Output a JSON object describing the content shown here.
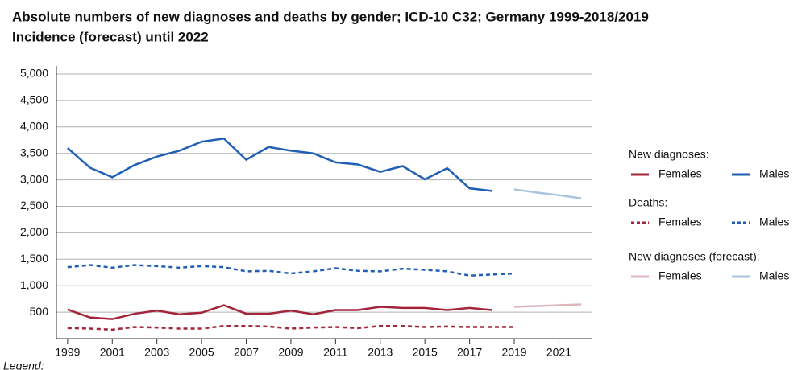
{
  "chart_data": {
    "type": "line",
    "title": "Absolute numbers of new diagnoses and deaths by gender; ICD-10 C32; Germany 1999-2018/2019",
    "subtitle": "Incidence (forecast) until 2022",
    "footer": "Legend:",
    "xlim": [
      1998.5,
      2022.5
    ],
    "xticks": [
      1999,
      2001,
      2003,
      2005,
      2007,
      2009,
      2011,
      2013,
      2015,
      2017,
      2019,
      2021
    ],
    "ylim": [
      0,
      5000
    ],
    "yticks": [
      {
        "value": 500,
        "label": "500"
      },
      {
        "value": 1000,
        "label": "1,000"
      },
      {
        "value": 1500,
        "label": "1,500"
      },
      {
        "value": 2000,
        "label": "2,000"
      },
      {
        "value": 2500,
        "label": "2,500"
      },
      {
        "value": 3000,
        "label": "3,000"
      },
      {
        "value": 3500,
        "label": "3,500"
      },
      {
        "value": 4000,
        "label": "4,000"
      },
      {
        "value": 4500,
        "label": "4,500"
      },
      {
        "value": 5000,
        "label": "5,000"
      }
    ],
    "grid": true,
    "groups": [
      {
        "title": "New diagnoses:",
        "line_style": "solid",
        "series": [
          {
            "name": "Females",
            "color": "#a3243b",
            "x": [
              1999,
              2000,
              2001,
              2002,
              2003,
              2004,
              2005,
              2006,
              2007,
              2008,
              2009,
              2010,
              2011,
              2012,
              2013,
              2014,
              2015,
              2016,
              2017,
              2018
            ],
            "values": [
              550,
              400,
              370,
              470,
              530,
              460,
              490,
              630,
              470,
              470,
              530,
              460,
              540,
              540,
              600,
              580,
              580,
              540,
              580,
              540
            ]
          },
          {
            "name": "Males",
            "color": "#1f5fb4",
            "x": [
              1999,
              2000,
              2001,
              2002,
              2003,
              2004,
              2005,
              2006,
              2007,
              2008,
              2009,
              2010,
              2011,
              2012,
              2013,
              2014,
              2015,
              2016,
              2017,
              2018
            ],
            "values": [
              3600,
              3230,
              3050,
              3280,
              3440,
              3550,
              3720,
              3780,
              3380,
              3620,
              3550,
              3500,
              3330,
              3290,
              3150,
              3260,
              3010,
              3220,
              2840,
              2790
            ]
          }
        ]
      },
      {
        "title": "Deaths:",
        "line_style": "dashed",
        "series": [
          {
            "name": "Females",
            "color": "#a3243b",
            "x": [
              1999,
              2000,
              2001,
              2002,
              2003,
              2004,
              2005,
              2006,
              2007,
              2008,
              2009,
              2010,
              2011,
              2012,
              2013,
              2014,
              2015,
              2016,
              2017,
              2018,
              2019
            ],
            "values": [
              200,
              190,
              170,
              220,
              210,
              190,
              190,
              240,
              240,
              230,
              190,
              210,
              220,
              200,
              240,
              240,
              220,
              230,
              220,
              220,
              220
            ]
          },
          {
            "name": "Males",
            "color": "#1f5fb4",
            "x": [
              1999,
              2000,
              2001,
              2002,
              2003,
              2004,
              2005,
              2006,
              2007,
              2008,
              2009,
              2010,
              2011,
              2012,
              2013,
              2014,
              2015,
              2016,
              2017,
              2018,
              2019
            ],
            "values": [
              1350,
              1390,
              1340,
              1390,
              1370,
              1340,
              1370,
              1350,
              1270,
              1280,
              1230,
              1270,
              1330,
              1280,
              1270,
              1320,
              1300,
              1270,
              1190,
              1210,
              1230
            ]
          }
        ]
      },
      {
        "title": "New diagnoses (forecast):",
        "line_style": "solid",
        "series": [
          {
            "name": "Females",
            "color": "#e0b5bb",
            "x": [
              2019,
              2020,
              2021,
              2022
            ],
            "values": [
              600,
              615,
              630,
              645
            ]
          },
          {
            "name": "Males",
            "color": "#a9c4e0",
            "x": [
              2019,
              2020,
              2021,
              2022
            ],
            "values": [
              2820,
              2760,
              2710,
              2650
            ]
          }
        ]
      }
    ]
  }
}
